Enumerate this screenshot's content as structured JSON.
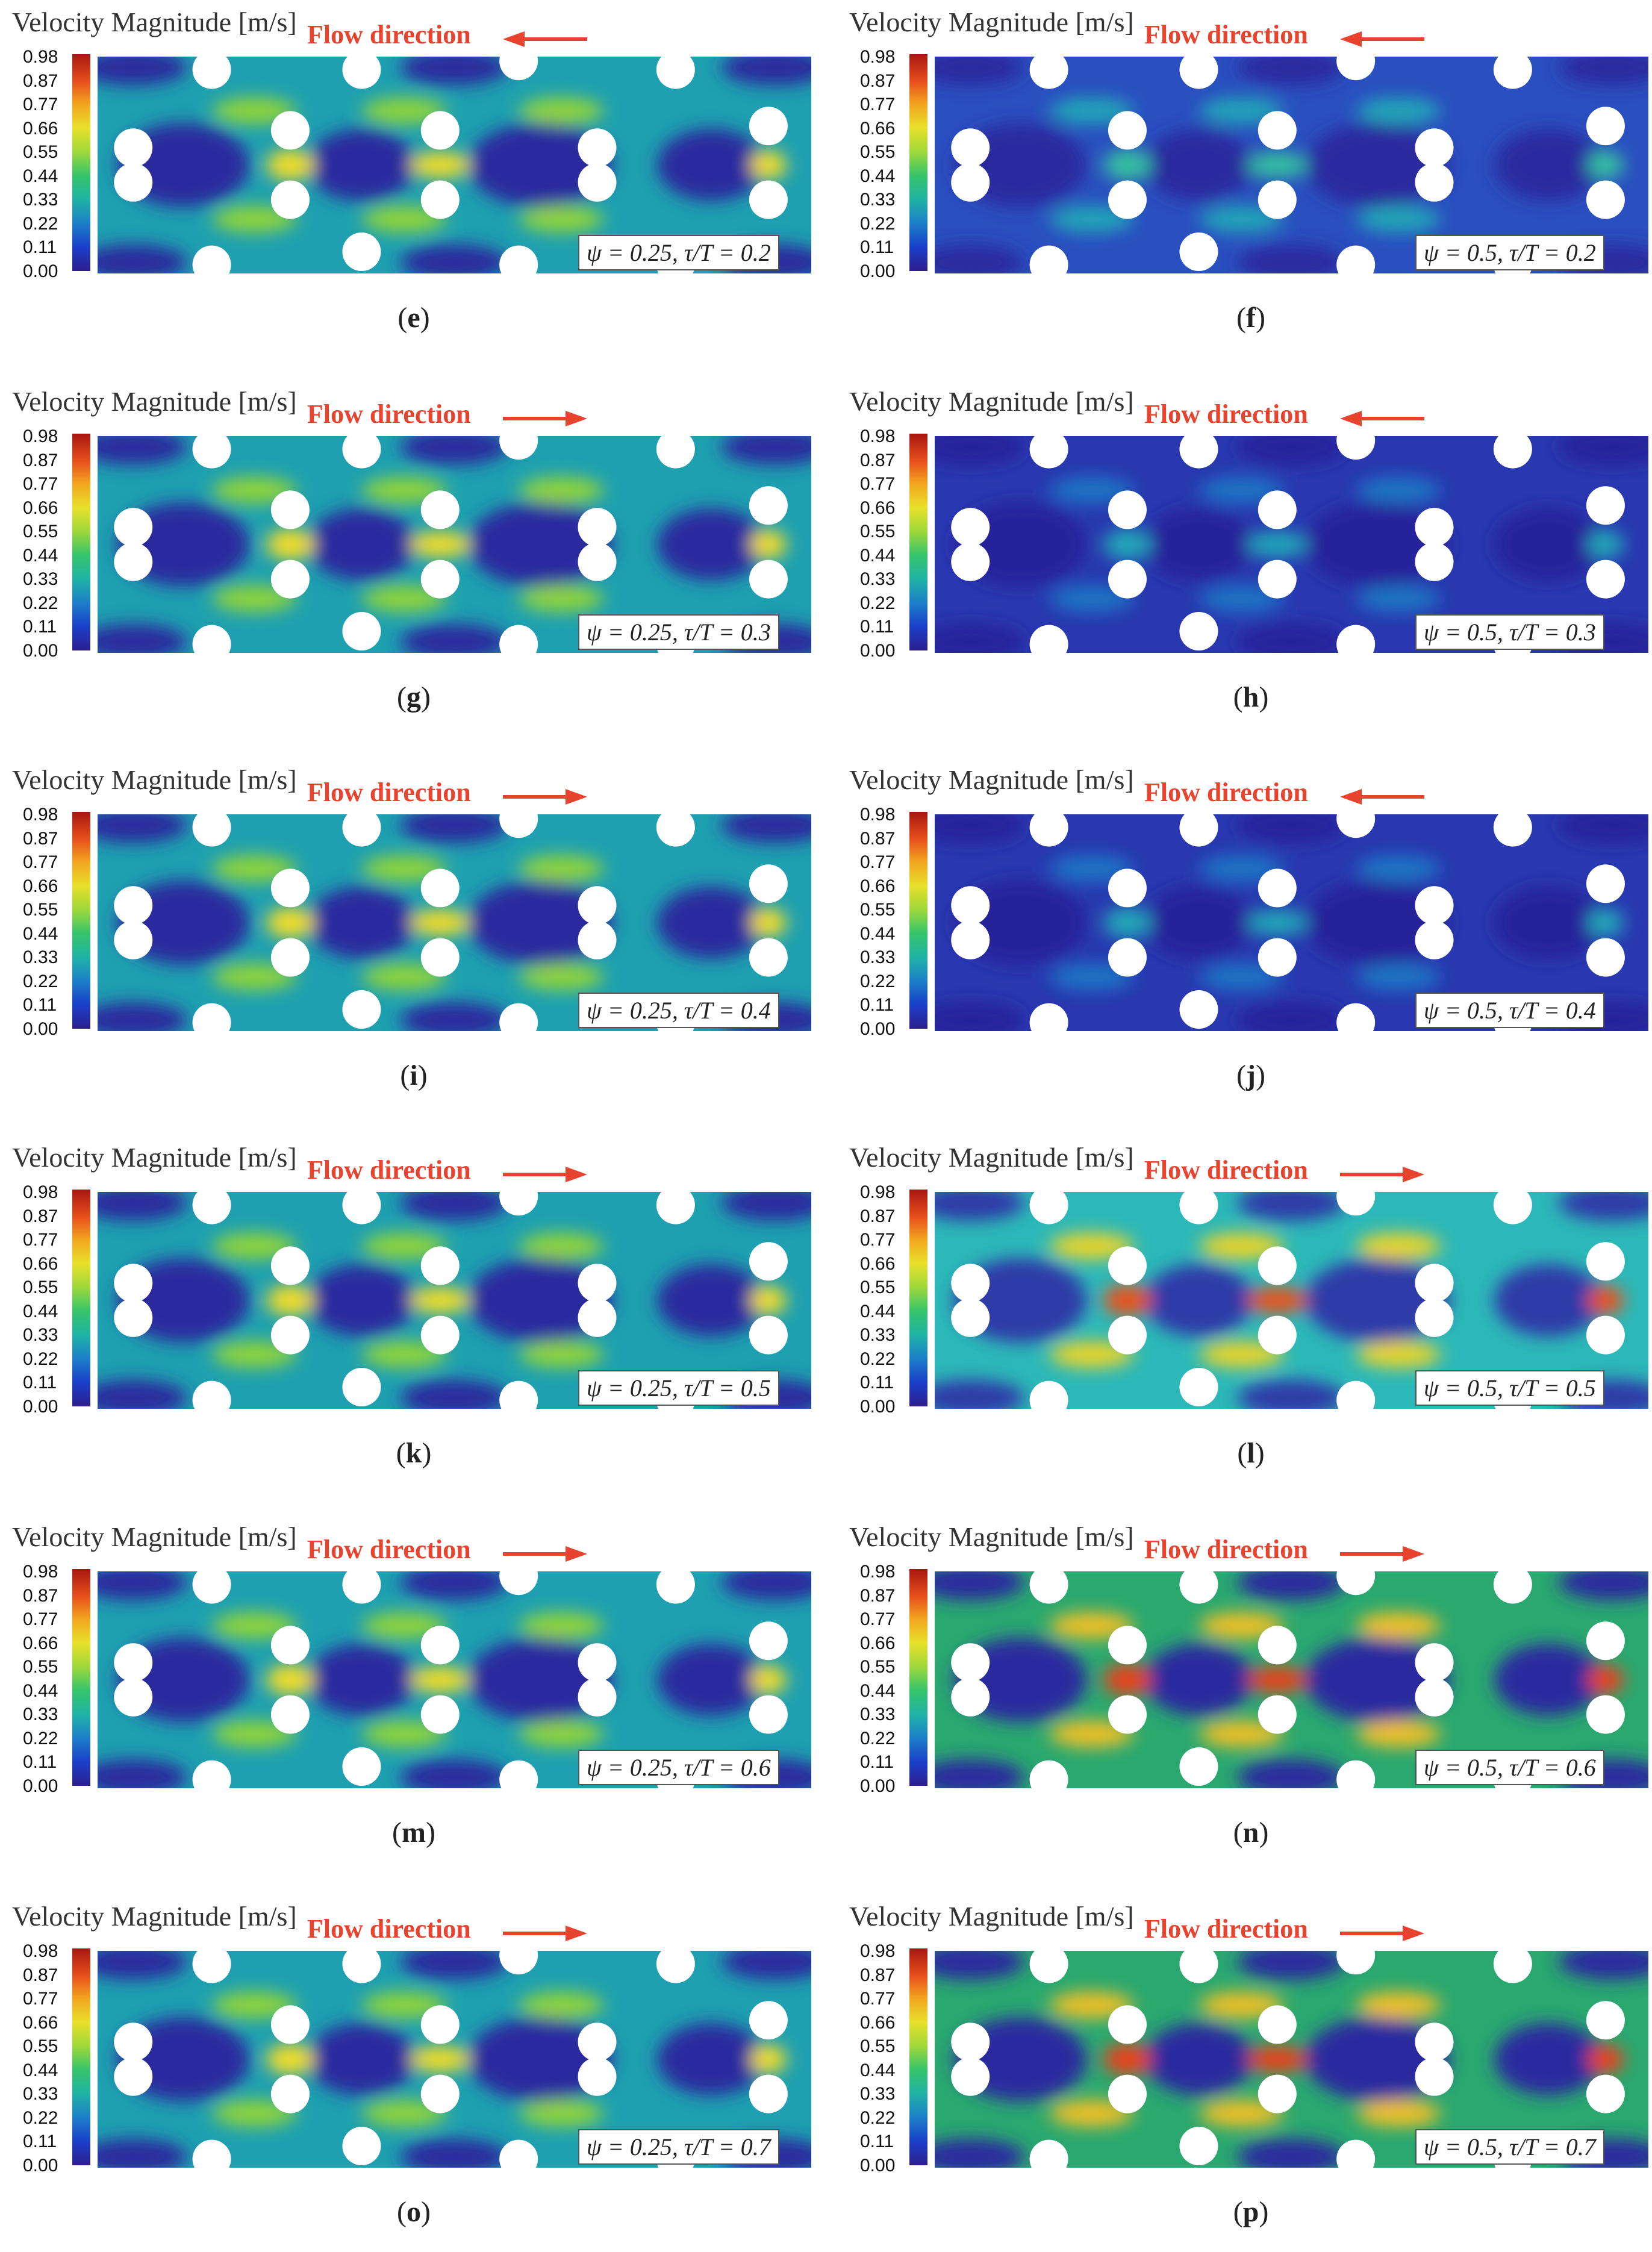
{
  "colorbar": {
    "title": "Velocity Magnitude [m/s]",
    "ticks": [
      "0.98",
      "0.87",
      "0.77",
      "0.66",
      "0.55",
      "0.44",
      "0.33",
      "0.22",
      "0.11",
      "0.00"
    ]
  },
  "flow_label": "Flow direction",
  "panels": [
    {
      "id": "e",
      "caption": "e",
      "psi": "0.25",
      "tau": "0.2",
      "direction": "left",
      "style": "medium"
    },
    {
      "id": "f",
      "caption": "f",
      "psi": "0.5",
      "tau": "0.2",
      "direction": "left",
      "style": "low"
    },
    {
      "id": "g",
      "caption": "g",
      "psi": "0.25",
      "tau": "0.3",
      "direction": "right",
      "style": "medium"
    },
    {
      "id": "h",
      "caption": "h",
      "psi": "0.5",
      "tau": "0.3",
      "direction": "left",
      "style": "verylow"
    },
    {
      "id": "i",
      "caption": "i",
      "psi": "0.25",
      "tau": "0.4",
      "direction": "right",
      "style": "medium"
    },
    {
      "id": "j",
      "caption": "j",
      "psi": "0.5",
      "tau": "0.4",
      "direction": "left",
      "style": "verylow"
    },
    {
      "id": "k",
      "caption": "k",
      "psi": "0.25",
      "tau": "0.5",
      "direction": "right",
      "style": "medium"
    },
    {
      "id": "l",
      "caption": "l",
      "psi": "0.5",
      "tau": "0.5",
      "direction": "right",
      "style": "cyan"
    },
    {
      "id": "m",
      "caption": "m",
      "psi": "0.25",
      "tau": "0.6",
      "direction": "right",
      "style": "medium"
    },
    {
      "id": "n",
      "caption": "n",
      "psi": "0.5",
      "tau": "0.6",
      "direction": "right",
      "style": "high"
    },
    {
      "id": "o",
      "caption": "o",
      "psi": "0.25",
      "tau": "0.7",
      "direction": "right",
      "style": "medium"
    },
    {
      "id": "p",
      "caption": "p",
      "psi": "0.5",
      "tau": "0.7",
      "direction": "right",
      "style": "high"
    }
  ]
}
